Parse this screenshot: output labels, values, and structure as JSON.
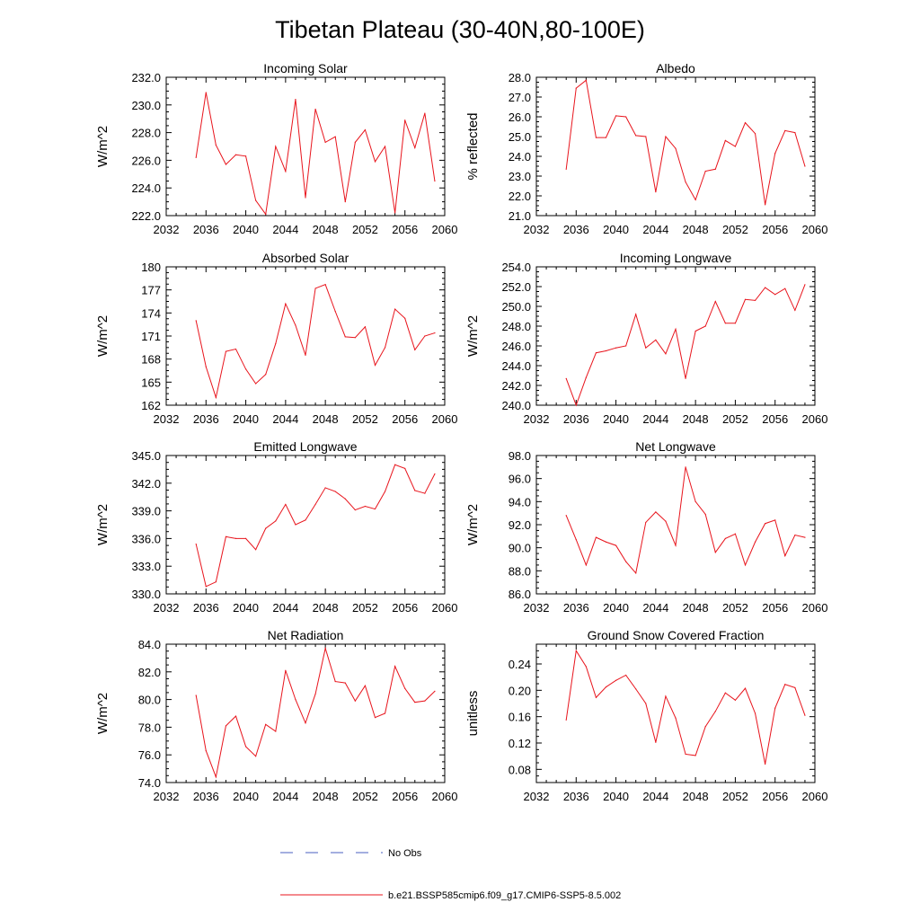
{
  "figure": {
    "title": "Tibetan Plateau (30-40N,80-100E)",
    "colors": {
      "model": "#e8141c",
      "obs": "#4a5fc1",
      "axes": "#000000",
      "background": "#ffffff"
    }
  },
  "legend": {
    "obs_label": "No Obs",
    "model_label": "b.e21.BSSP585cmip6.f09_g17.CMIP6-SSP5-8.5.002"
  },
  "chart_data": [
    {
      "type": "line",
      "title": "Incoming Solar",
      "ylabel": "W/m^2",
      "xlim": [
        2032,
        2060
      ],
      "ylim": [
        222,
        232
      ],
      "xticks": [
        "2032",
        "2036",
        "2040",
        "2044",
        "2048",
        "2052",
        "2056",
        "2060"
      ],
      "yticks": [
        "222.0",
        "224.0",
        "226.0",
        "228.0",
        "230.0",
        "232.0"
      ],
      "x": [
        2035,
        2036,
        2037,
        2038,
        2039,
        2040,
        2041,
        2042,
        2043,
        2044,
        2045,
        2046,
        2047,
        2048,
        2049,
        2050,
        2051,
        2052,
        2053,
        2054,
        2055,
        2056,
        2057,
        2058,
        2059
      ],
      "series": [
        {
          "values": [
            226.2,
            230.9,
            227.1,
            225.7,
            226.4,
            226.3,
            223.1,
            222.1,
            227.0,
            225.2,
            230.4,
            223.3,
            229.7,
            227.3,
            227.7,
            223.0,
            227.3,
            228.2,
            225.9,
            227.0,
            222.2,
            228.9,
            226.9,
            229.4,
            224.5
          ]
        }
      ]
    },
    {
      "type": "line",
      "title": "Albedo",
      "ylabel": "% reflected",
      "xlim": [
        2032,
        2060
      ],
      "ylim": [
        21,
        28
      ],
      "xticks": [
        "2032",
        "2036",
        "2040",
        "2044",
        "2048",
        "2052",
        "2056",
        "2060"
      ],
      "yticks": [
        "21.0",
        "22.0",
        "23.0",
        "24.0",
        "25.0",
        "26.0",
        "27.0",
        "28.0"
      ],
      "x": [
        2035,
        2036,
        2037,
        2038,
        2039,
        2040,
        2041,
        2042,
        2043,
        2044,
        2045,
        2046,
        2047,
        2048,
        2049,
        2050,
        2051,
        2052,
        2053,
        2054,
        2055,
        2056,
        2057,
        2058,
        2059
      ],
      "series": [
        {
          "values": [
            23.35,
            27.45,
            27.85,
            24.95,
            24.95,
            26.05,
            26.0,
            25.05,
            25.0,
            22.2,
            25.0,
            24.4,
            22.7,
            21.8,
            23.25,
            23.35,
            24.8,
            24.5,
            25.7,
            25.15,
            21.55,
            24.15,
            25.3,
            25.2,
            23.5
          ]
        }
      ]
    },
    {
      "type": "line",
      "title": "Absorbed Solar",
      "ylabel": "W/m^2",
      "xlim": [
        2032,
        2060
      ],
      "ylim": [
        162,
        180
      ],
      "xticks": [
        "2032",
        "2036",
        "2040",
        "2044",
        "2048",
        "2052",
        "2056",
        "2060"
      ],
      "yticks": [
        "162",
        "165",
        "168",
        "171",
        "174",
        "177",
        "180"
      ],
      "x": [
        2035,
        2036,
        2037,
        2038,
        2039,
        2040,
        2041,
        2042,
        2043,
        2044,
        2045,
        2046,
        2047,
        2048,
        2049,
        2050,
        2051,
        2052,
        2053,
        2054,
        2055,
        2056,
        2057,
        2058,
        2059
      ],
      "series": [
        {
          "values": [
            173.0,
            167.0,
            163.0,
            169.0,
            169.3,
            166.7,
            164.8,
            166.0,
            170.0,
            175.2,
            172.4,
            168.5,
            177.2,
            177.7,
            174.2,
            170.9,
            170.8,
            172.2,
            167.2,
            169.5,
            174.5,
            173.3,
            169.2,
            171.0,
            171.4
          ]
        }
      ]
    },
    {
      "type": "line",
      "title": "Incoming Longwave",
      "ylabel": "W/m^2",
      "xlim": [
        2032,
        2060
      ],
      "ylim": [
        240,
        254
      ],
      "xticks": [
        "2032",
        "2036",
        "2040",
        "2044",
        "2048",
        "2052",
        "2056",
        "2060"
      ],
      "yticks": [
        "240.0",
        "242.0",
        "244.0",
        "246.0",
        "248.0",
        "250.0",
        "252.0",
        "254.0"
      ],
      "x": [
        2035,
        2036,
        2037,
        2038,
        2039,
        2040,
        2041,
        2042,
        2043,
        2044,
        2045,
        2046,
        2047,
        2048,
        2049,
        2050,
        2051,
        2052,
        2053,
        2054,
        2055,
        2056,
        2057,
        2058,
        2059
      ],
      "series": [
        {
          "values": [
            242.7,
            240.0,
            242.8,
            245.3,
            245.5,
            245.8,
            246.0,
            249.2,
            245.8,
            246.6,
            245.2,
            247.7,
            242.7,
            247.5,
            248.0,
            250.5,
            248.3,
            248.3,
            250.7,
            250.6,
            251.9,
            251.2,
            251.8,
            249.6,
            252.2
          ]
        }
      ]
    },
    {
      "type": "line",
      "title": "Emitted Longwave",
      "ylabel": "W/m^2",
      "xlim": [
        2032,
        2060
      ],
      "ylim": [
        330,
        345
      ],
      "xticks": [
        "2032",
        "2036",
        "2040",
        "2044",
        "2048",
        "2052",
        "2056",
        "2060"
      ],
      "yticks": [
        "330.0",
        "333.0",
        "336.0",
        "339.0",
        "342.0",
        "345.0"
      ],
      "x": [
        2035,
        2036,
        2037,
        2038,
        2039,
        2040,
        2041,
        2042,
        2043,
        2044,
        2045,
        2046,
        2047,
        2048,
        2049,
        2050,
        2051,
        2052,
        2053,
        2054,
        2055,
        2056,
        2057,
        2058,
        2059
      ],
      "series": [
        {
          "values": [
            335.4,
            330.8,
            331.3,
            336.2,
            336.0,
            336.0,
            334.8,
            337.1,
            337.9,
            339.7,
            337.5,
            338.0,
            339.7,
            341.5,
            341.1,
            340.3,
            339.1,
            339.5,
            339.2,
            341.1,
            344.0,
            343.6,
            341.2,
            340.9,
            343.0
          ]
        }
      ]
    },
    {
      "type": "line",
      "title": "Net Longwave",
      "ylabel": "W/m^2",
      "xlim": [
        2032,
        2060
      ],
      "ylim": [
        86,
        98
      ],
      "xticks": [
        "2032",
        "2036",
        "2040",
        "2044",
        "2048",
        "2052",
        "2056",
        "2060"
      ],
      "yticks": [
        "86.0",
        "88.0",
        "90.0",
        "92.0",
        "94.0",
        "96.0",
        "98.0"
      ],
      "x": [
        2035,
        2036,
        2037,
        2038,
        2039,
        2040,
        2041,
        2042,
        2043,
        2044,
        2045,
        2046,
        2047,
        2048,
        2049,
        2050,
        2051,
        2052,
        2053,
        2054,
        2055,
        2056,
        2057,
        2058,
        2059
      ],
      "series": [
        {
          "values": [
            92.8,
            90.7,
            88.5,
            90.9,
            90.5,
            90.2,
            88.8,
            87.8,
            92.2,
            93.1,
            92.3,
            90.2,
            97.0,
            94.0,
            92.9,
            89.6,
            90.8,
            91.2,
            88.5,
            90.5,
            92.1,
            92.4,
            89.3,
            91.1,
            90.9
          ]
        }
      ]
    },
    {
      "type": "line",
      "title": "Net Radiation",
      "ylabel": "W/m^2",
      "xlim": [
        2032,
        2060
      ],
      "ylim": [
        74,
        84
      ],
      "xticks": [
        "2032",
        "2036",
        "2040",
        "2044",
        "2048",
        "2052",
        "2056",
        "2060"
      ],
      "yticks": [
        "74.0",
        "76.0",
        "78.0",
        "80.0",
        "82.0",
        "84.0"
      ],
      "x": [
        2035,
        2036,
        2037,
        2038,
        2039,
        2040,
        2041,
        2042,
        2043,
        2044,
        2045,
        2046,
        2047,
        2048,
        2049,
        2050,
        2051,
        2052,
        2053,
        2054,
        2055,
        2056,
        2057,
        2058,
        2059
      ],
      "series": [
        {
          "values": [
            80.3,
            76.3,
            74.4,
            78.1,
            78.8,
            76.6,
            75.9,
            78.2,
            77.7,
            82.1,
            80.0,
            78.3,
            80.4,
            83.7,
            81.3,
            81.2,
            79.9,
            81.0,
            78.7,
            79.0,
            82.4,
            80.8,
            79.8,
            79.9,
            80.6
          ]
        }
      ]
    },
    {
      "type": "line",
      "title": "Ground Snow Covered Fraction",
      "ylabel": "unitless",
      "xlim": [
        2032,
        2060
      ],
      "ylim": [
        0.06,
        0.27
      ],
      "xticks": [
        "2032",
        "2036",
        "2040",
        "2044",
        "2048",
        "2052",
        "2056",
        "2060"
      ],
      "yticks": [
        "0.08",
        "0.12",
        "0.16",
        "0.20",
        "0.24"
      ],
      "x": [
        2035,
        2036,
        2037,
        2038,
        2039,
        2040,
        2041,
        2042,
        2043,
        2044,
        2045,
        2046,
        2047,
        2048,
        2049,
        2050,
        2051,
        2052,
        2053,
        2054,
        2055,
        2056,
        2057,
        2058,
        2059
      ],
      "series": [
        {
          "values": [
            0.155,
            0.26,
            0.236,
            0.189,
            0.205,
            0.215,
            0.223,
            0.202,
            0.18,
            0.121,
            0.191,
            0.158,
            0.103,
            0.101,
            0.145,
            0.168,
            0.196,
            0.185,
            0.203,
            0.165,
            0.088,
            0.173,
            0.209,
            0.204,
            0.162
          ]
        }
      ]
    }
  ]
}
